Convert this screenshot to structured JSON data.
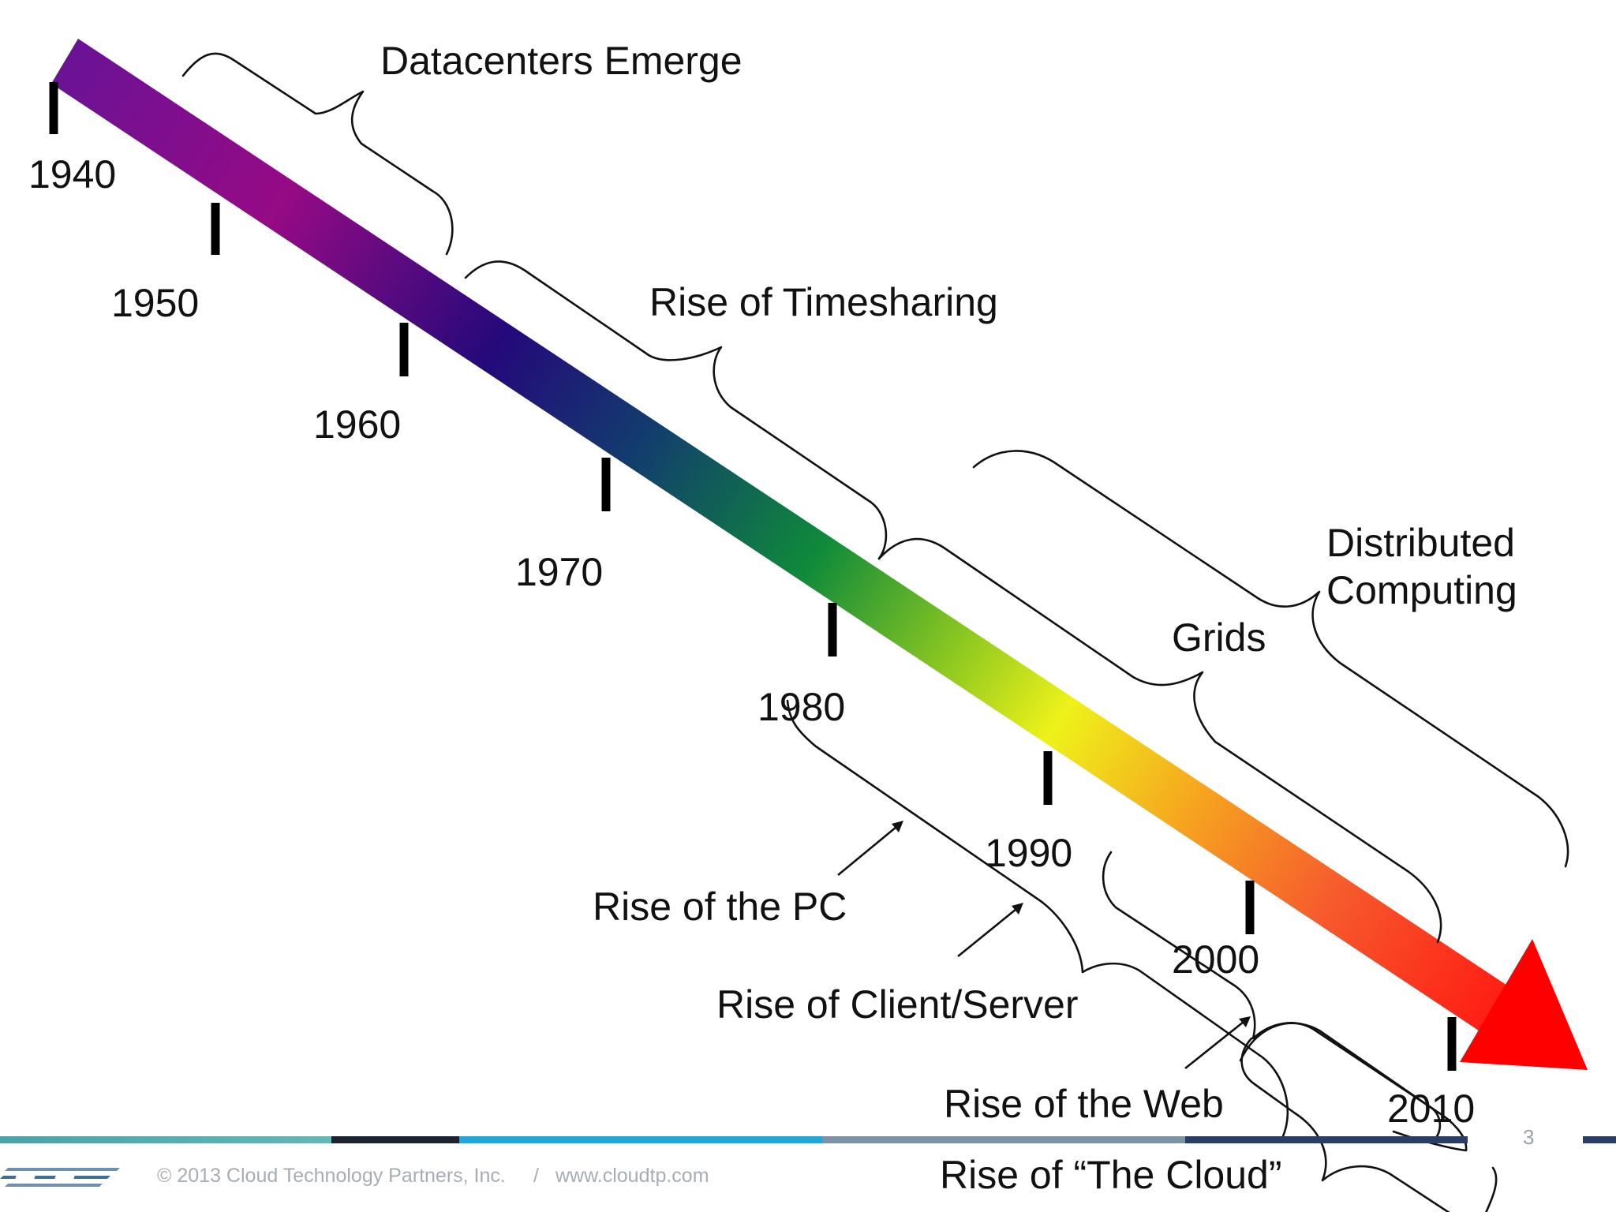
{
  "timeline": {
    "years": [
      "1940",
      "1950",
      "1960",
      "1970",
      "1980",
      "1990",
      "2000",
      "2010"
    ],
    "gradient_colors": [
      "#7b0f9a",
      "#8f0a86",
      "#1d0a7a",
      "#0f8a3a",
      "#ecf21a",
      "#f4a21e",
      "#ff1a10",
      "#ff0000"
    ]
  },
  "eras": {
    "datacenters": "Datacenters Emerge",
    "timesharing": "Rise of Timesharing",
    "distributed_line1": "Distributed",
    "distributed_line2": "Computing",
    "grids": "Grids",
    "pc": "Rise of the PC",
    "client_server": "Rise of Client/Server",
    "web": "Rise of the Web",
    "cloud": "Rise of “The Cloud”"
  },
  "footer": {
    "copyright": "© 2013 Cloud Technology Partners, Inc.",
    "separator": "/",
    "website": "www.cloudtp.com",
    "page_number": "3",
    "logo_colors": [
      "#6f8fb0",
      "#3f6f98"
    ]
  }
}
